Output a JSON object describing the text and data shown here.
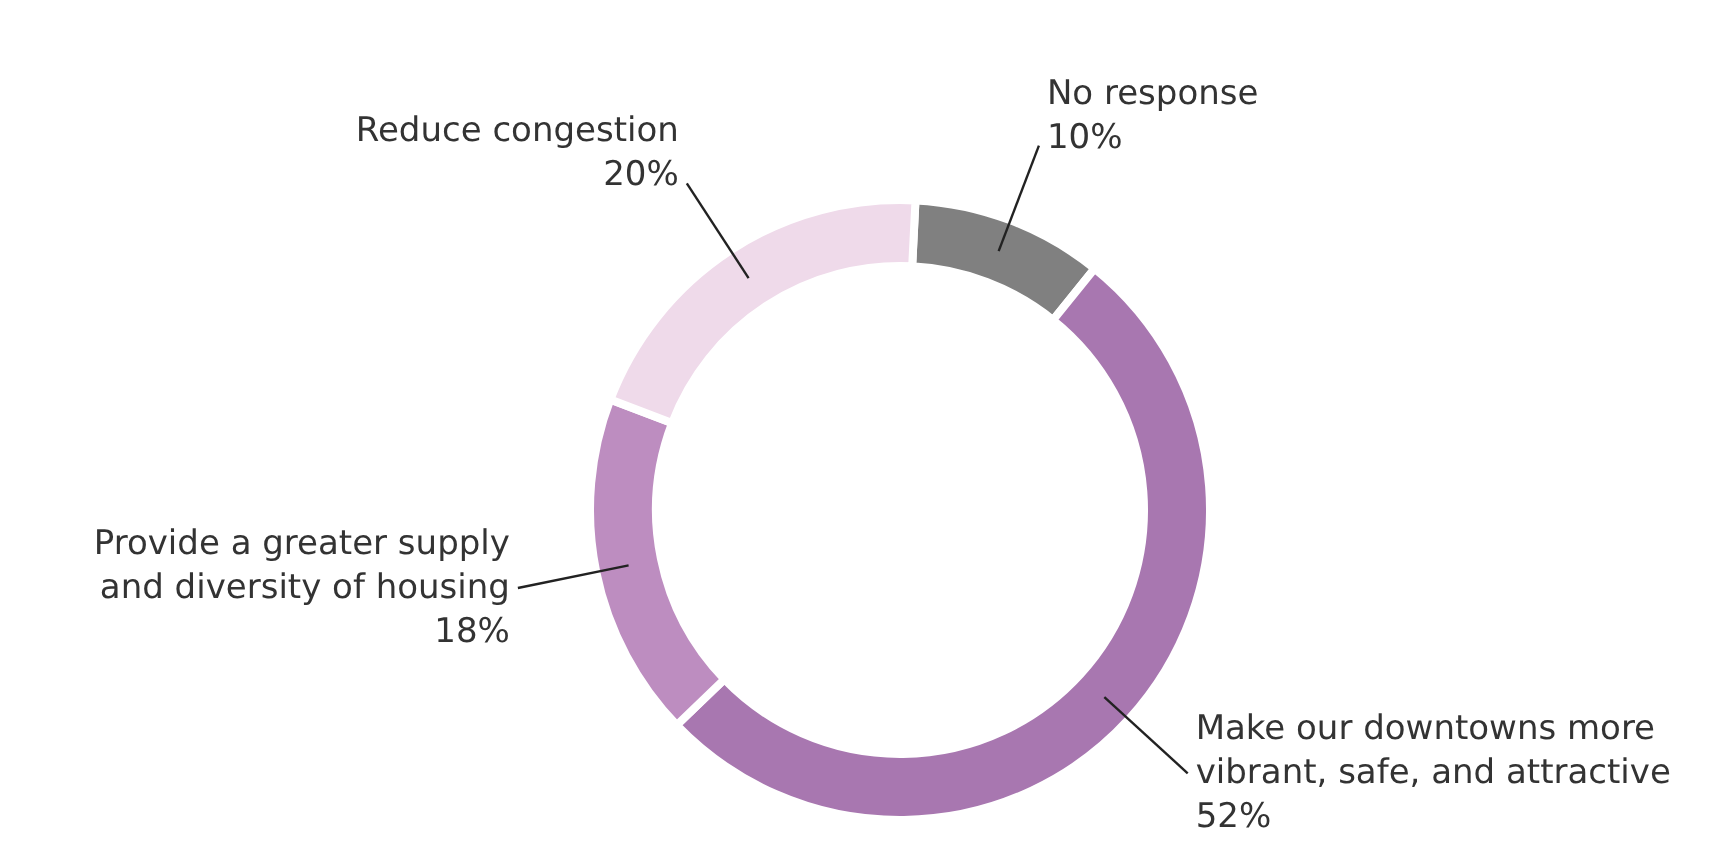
{
  "chart_data": {
    "type": "donut",
    "categories": [
      "No response",
      "Make our downtowns more\nvibrant, safe, and attractive",
      "Provide a greater supply\nand diversity of housing",
      "Reduce congestion"
    ],
    "values": [
      10,
      52,
      18,
      20
    ],
    "colors": [
      "#808080",
      "#a877b0",
      "#bd8dc0",
      "#efdaea"
    ],
    "value_labels": [
      "10%",
      "52%",
      "18%",
      "20%"
    ]
  }
}
